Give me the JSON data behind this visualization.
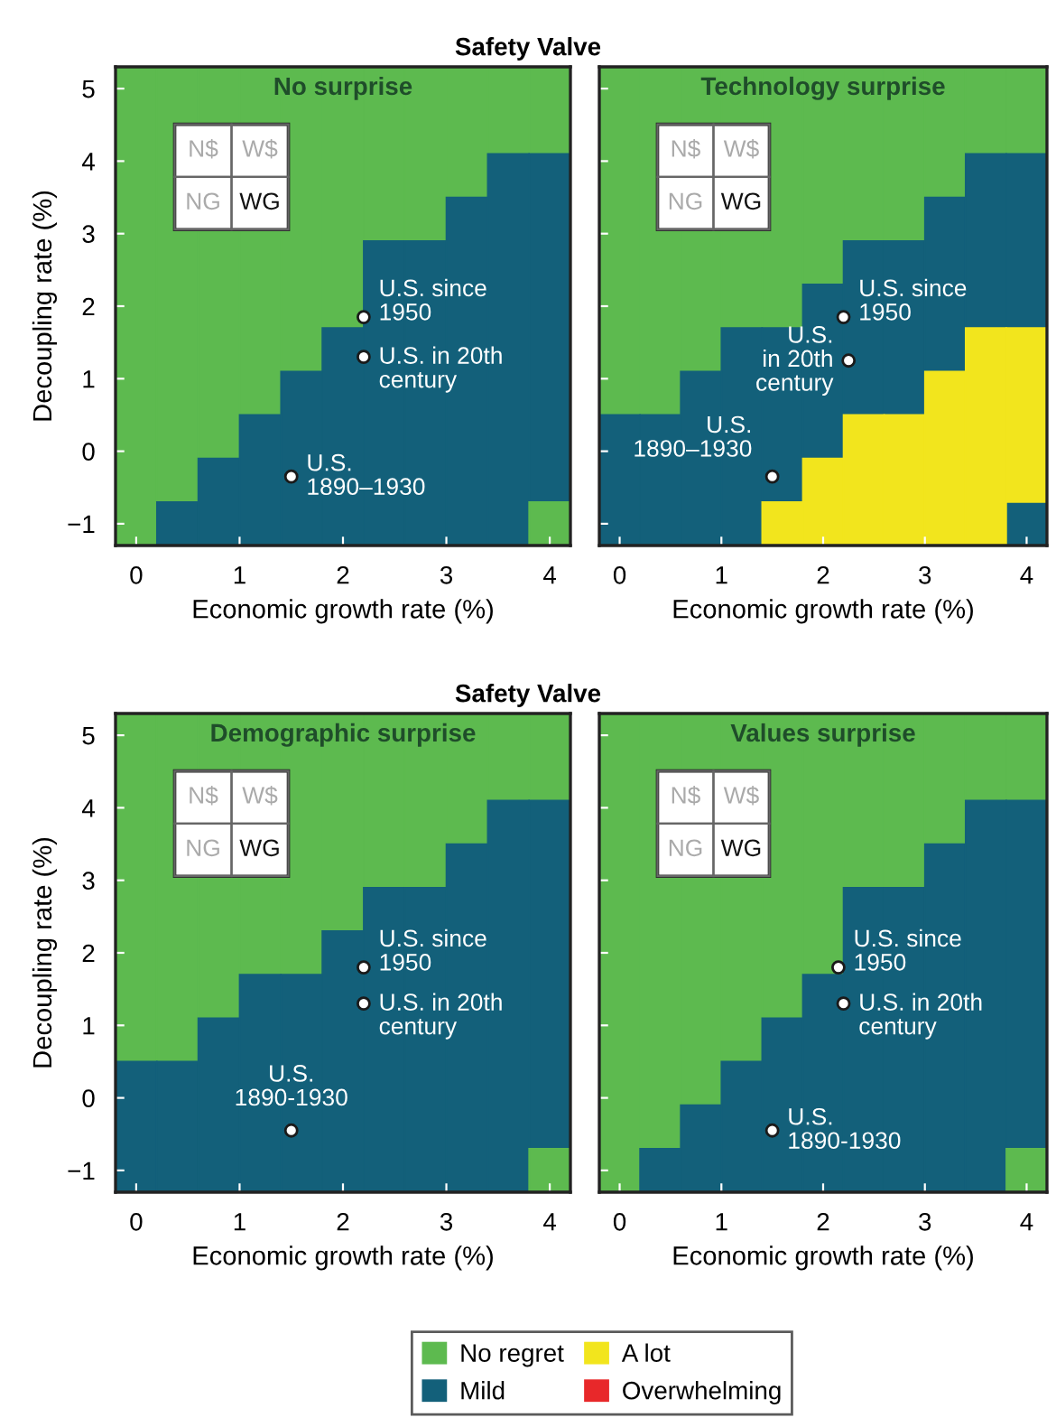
{
  "chart_data": [
    {
      "type": "bar",
      "title": "Safety Valve",
      "subtitle": "No surprise",
      "legend": "bottom",
      "xlabel": "Economic growth rate (%)",
      "ylabel": "Decoupling rate (%)",
      "x": [
        0,
        0.4,
        0.8,
        1.2,
        1.6,
        2.0,
        2.4,
        2.8,
        3.2,
        3.6,
        4.0
      ],
      "xlim": [
        -0.2,
        4.2
      ],
      "ylim": [
        -1.3,
        5.3
      ],
      "xticks": [
        0,
        1,
        2,
        3,
        4
      ],
      "yticks": [
        -1,
        0,
        1,
        2,
        3,
        4,
        5
      ],
      "series": [
        {
          "name": "No regret",
          "color": "#5dba4f",
          "base": [
            -1.3,
            -0.7,
            -0.1,
            0.5,
            1.1,
            1.7,
            2.9,
            2.9,
            3.5,
            4.1,
            4.1
          ],
          "values": [
            6.6,
            6.0,
            5.4,
            4.8,
            4.2,
            3.6,
            2.4,
            2.4,
            1.8,
            1.2,
            1.2
          ]
        },
        {
          "name": "Mild",
          "color": "#13607a",
          "base": [
            null,
            -1.3,
            -1.3,
            -1.3,
            -1.3,
            -1.3,
            -1.3,
            -1.3,
            -1.3,
            -1.3,
            -0.7
          ],
          "values": [
            null,
            0.6,
            1.2,
            1.8,
            2.4,
            3.0,
            4.2,
            4.2,
            4.8,
            5.4,
            4.8
          ]
        },
        {
          "color": "#5dba4f",
          "base": [
            null,
            null,
            null,
            null,
            null,
            null,
            null,
            null,
            null,
            null,
            -1.3
          ],
          "values": [
            null,
            null,
            null,
            null,
            null,
            null,
            null,
            null,
            null,
            null,
            0.6
          ]
        },
        {
          "type": "scatter",
          "color": "#ffffff",
          "x": [
            2.2,
            2.2,
            1.5
          ],
          "values": [
            1.85,
            1.3,
            -0.35
          ],
          "marker": "circle"
        }
      ],
      "annotations": [
        "N$",
        "W$",
        "NG",
        "WG",
        {
          "text": "U.S. since\n1950",
          "x": 2.2,
          "y": 1.85
        },
        {
          "text": "U.S. in 20th\ncentury",
          "x": 2.2,
          "y": 1.3
        },
        {
          "text": "U.S.\n1890–1930",
          "x": 1.5,
          "y": -0.35
        }
      ]
    },
    {
      "type": "bar",
      "subtitle": "Technology surprise",
      "legend": "bottom",
      "xlabel": "Economic growth rate (%)",
      "x": [
        0,
        0.4,
        0.8,
        1.2,
        1.6,
        2.0,
        2.4,
        2.8,
        3.2,
        3.6,
        4.0
      ],
      "xlim": [
        -0.2,
        4.2
      ],
      "ylim": [
        -1.3,
        5.3
      ],
      "xticks": [
        0,
        1,
        2,
        3,
        4
      ],
      "yticks": [
        -1,
        0,
        1,
        2,
        3,
        4,
        5
      ],
      "tick_labels": "x",
      "series": [
        {
          "name": "No regret",
          "color": "#5dba4f",
          "base": [
            0.5,
            0.5,
            1.1,
            1.7,
            1.7,
            2.3,
            2.9,
            2.9,
            3.5,
            4.1,
            4.1
          ],
          "values": [
            4.8,
            4.8,
            4.2,
            3.6,
            3.6,
            3.0,
            2.4,
            2.4,
            1.8,
            1.2,
            1.2
          ]
        },
        {
          "name": "Mild",
          "color": "#13607a",
          "base": [
            -1.3,
            -1.3,
            -1.3,
            -1.3,
            -0.7,
            -0.1,
            0.5,
            0.5,
            1.1,
            1.7,
            1.7
          ],
          "values": [
            1.8,
            1.8,
            2.4,
            3.0,
            2.4,
            2.4,
            2.4,
            2.4,
            2.4,
            2.4,
            2.4
          ]
        },
        {
          "color": "#13607a",
          "base": [
            null,
            null,
            null,
            null,
            null,
            null,
            null,
            null,
            null,
            null,
            -1.3
          ],
          "values": [
            null,
            null,
            null,
            null,
            null,
            null,
            null,
            null,
            null,
            null,
            0.6
          ]
        },
        {
          "name": "A lot",
          "color": "#f2e51d",
          "base": [
            null,
            null,
            null,
            null,
            -1.3,
            -1.3,
            -1.3,
            -1.3,
            -1.3,
            -1.3,
            -0.7
          ],
          "values": [
            null,
            null,
            null,
            null,
            0.6,
            1.2,
            1.8,
            1.8,
            2.4,
            3.0,
            2.4
          ]
        },
        {
          "type": "scatter",
          "color": "#ffffff",
          "x": [
            2.2,
            2.25,
            1.5
          ],
          "values": [
            1.85,
            1.25,
            -0.35
          ],
          "marker": "circle"
        }
      ],
      "annotations": [
        "N$",
        "W$",
        "NG",
        "WG",
        {
          "text": "U.S. since\n1950",
          "x": 2.2,
          "y": 1.85
        },
        {
          "text": "U.S.\nin 20th\ncentury",
          "x": 2.25,
          "y": 1.25
        },
        {
          "text": "U.S.\n1890–1930",
          "x": 1.5,
          "y": -0.35
        }
      ]
    },
    {
      "type": "bar",
      "title": "Safety Valve",
      "subtitle": "Demographic surprise",
      "legend": "bottom",
      "xlabel": "Economic growth rate (%)",
      "ylabel": "Decoupling rate (%)",
      "x": [
        0,
        0.4,
        0.8,
        1.2,
        1.6,
        2.0,
        2.4,
        2.8,
        3.2,
        3.6,
        4.0
      ],
      "xlim": [
        -0.2,
        4.2
      ],
      "ylim": [
        -1.3,
        5.3
      ],
      "xticks": [
        0,
        1,
        2,
        3,
        4
      ],
      "yticks": [
        -1,
        0,
        1,
        2,
        3,
        4,
        5
      ],
      "series": [
        {
          "name": "No regret",
          "color": "#5dba4f",
          "base": [
            0.5,
            0.5,
            1.1,
            1.7,
            1.7,
            2.3,
            2.9,
            2.9,
            3.5,
            4.1,
            4.1
          ],
          "values": [
            4.8,
            4.8,
            4.2,
            3.6,
            3.6,
            3.0,
            2.4,
            2.4,
            1.8,
            1.2,
            1.2
          ]
        },
        {
          "name": "Mild",
          "color": "#13607a",
          "base": [
            -1.3,
            -1.3,
            -1.3,
            -1.3,
            -1.3,
            -1.3,
            -1.3,
            -1.3,
            -1.3,
            -1.3,
            -0.7
          ],
          "values": [
            1.8,
            1.8,
            2.4,
            3.0,
            3.0,
            3.6,
            4.2,
            4.2,
            4.8,
            5.4,
            4.8
          ]
        },
        {
          "color": "#5dba4f",
          "base": [
            null,
            null,
            null,
            null,
            null,
            null,
            null,
            null,
            null,
            null,
            -1.3
          ],
          "values": [
            null,
            null,
            null,
            null,
            null,
            null,
            null,
            null,
            null,
            null,
            0.6
          ]
        },
        {
          "type": "scatter",
          "color": "#ffffff",
          "x": [
            2.2,
            2.2,
            1.5
          ],
          "values": [
            1.8,
            1.3,
            -0.45
          ],
          "marker": "circle"
        }
      ],
      "annotations": [
        "N$",
        "W$",
        "NG",
        "WG",
        {
          "text": "U.S. since\n1950",
          "x": 2.2,
          "y": 1.8
        },
        {
          "text": "U.S. in 20th\ncentury",
          "x": 2.2,
          "y": 1.3
        },
        {
          "text": "U.S.\n1890-1930",
          "x": 1.5,
          "y": -0.45
        }
      ]
    },
    {
      "type": "bar",
      "subtitle": "Values surprise",
      "xlabel": "Economic growth rate (%)",
      "x": [
        0,
        0.4,
        0.8,
        1.2,
        1.6,
        2.0,
        2.4,
        2.8,
        3.2,
        3.6,
        4.0
      ],
      "xlim": [
        -0.2,
        4.2
      ],
      "ylim": [
        -1.3,
        5.3
      ],
      "xticks": [
        0,
        1,
        2,
        3,
        4
      ],
      "yticks": [
        -1,
        0,
        1,
        2,
        3,
        4,
        5
      ],
      "tick_labels": "x",
      "legend": "bottom",
      "series": [
        {
          "name": "No regret",
          "color": "#5dba4f",
          "base": [
            -1.3,
            -0.7,
            -0.1,
            0.5,
            1.1,
            1.7,
            2.9,
            2.9,
            3.5,
            4.1,
            4.1
          ],
          "values": [
            6.6,
            6.0,
            5.4,
            4.8,
            4.2,
            3.6,
            2.4,
            2.4,
            1.8,
            1.2,
            1.2
          ]
        },
        {
          "name": "Mild",
          "color": "#13607a",
          "base": [
            null,
            -1.3,
            -1.3,
            -1.3,
            -1.3,
            -1.3,
            -1.3,
            -1.3,
            -1.3,
            -1.3,
            -0.7
          ],
          "values": [
            null,
            0.6,
            1.2,
            1.8,
            2.4,
            3.0,
            4.2,
            4.2,
            4.8,
            5.4,
            4.8
          ]
        },
        {
          "color": "#5dba4f",
          "base": [
            null,
            null,
            null,
            null,
            null,
            null,
            null,
            null,
            null,
            null,
            -1.3
          ],
          "values": [
            null,
            null,
            null,
            null,
            null,
            null,
            null,
            null,
            null,
            null,
            0.6
          ]
        },
        {
          "name": "Overwhelming",
          "color": "#e8282a",
          "base": [
            null,
            null,
            null,
            null,
            null,
            null,
            null,
            null,
            null,
            null,
            null
          ],
          "values": [
            null,
            null,
            null,
            null,
            null,
            null,
            null,
            null,
            null,
            null,
            null
          ]
        },
        {
          "type": "scatter",
          "color": "#ffffff",
          "x": [
            2.15,
            2.2,
            1.5
          ],
          "values": [
            1.8,
            1.3,
            -0.45
          ],
          "marker": "circle"
        }
      ],
      "annotations": [
        "N$",
        "W$",
        "NG",
        "WG",
        {
          "text": "U.S. since\n1950",
          "x": 2.15,
          "y": 1.8
        },
        {
          "text": "U.S. in 20th\ncentury",
          "x": 2.2,
          "y": 1.3
        },
        {
          "text": "U.S.\n1890-1930",
          "x": 1.5,
          "y": -0.45
        }
      ]
    }
  ]
}
